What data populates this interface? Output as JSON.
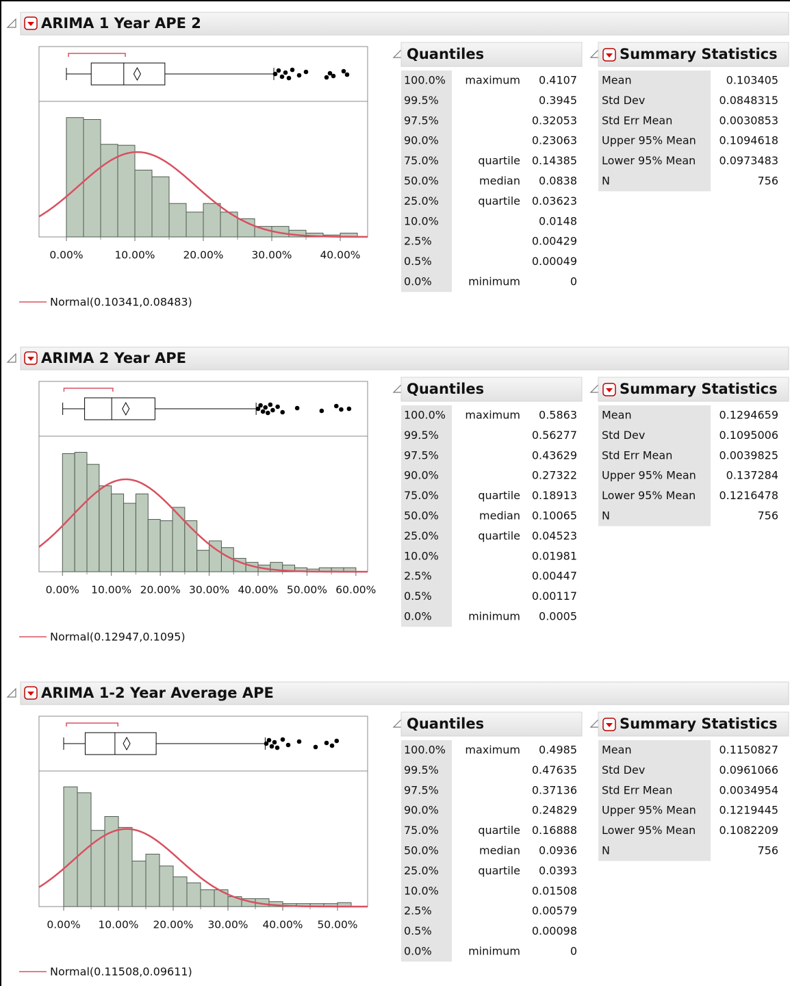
{
  "chart_data": [
    {
      "type": "histogram",
      "title": "ARIMA 1 Year APE 2",
      "color": "#bdcbbd",
      "curve_color": "#d8505f",
      "bins": [
        0,
        0.025,
        0.05,
        0.075,
        0.1,
        0.125,
        0.15,
        0.175,
        0.2,
        0.225,
        0.25,
        0.275,
        0.3,
        0.325,
        0.35,
        0.375,
        0.4,
        0.425
      ],
      "counts": [
        125,
        123,
        97,
        96,
        70,
        63,
        35,
        26,
        35,
        26,
        19,
        11,
        11,
        7,
        4,
        2,
        4
      ],
      "xlim": [
        -0.04,
        0.44
      ],
      "ylim": [
        0,
        142
      ],
      "xticks": [
        {
          "value": 0,
          "label": "0.00%"
        },
        {
          "value": 0.1,
          "label": "10.00%"
        },
        {
          "value": 0.2,
          "label": "20.00%"
        },
        {
          "value": 0.3,
          "label": "30.00%"
        },
        {
          "value": 0.4,
          "label": "40.00%"
        }
      ],
      "upper_whisker": 0.303,
      "shortest_half": [
        0.003,
        0.086
      ],
      "outliers": [
        0.305,
        0.31,
        0.315,
        0.32,
        0.325,
        0.33,
        0.34,
        0.35,
        0.38,
        0.385,
        0.39,
        0.405,
        0.41
      ],
      "fit_label": "Normal(0.10341,0.08483)"
    },
    {
      "type": "histogram",
      "title": "ARIMA 2 Year APE",
      "color": "#bdcbbd",
      "curve_color": "#d8505f",
      "bins": [
        0,
        0.025,
        0.05,
        0.075,
        0.1,
        0.125,
        0.15,
        0.175,
        0.2,
        0.225,
        0.25,
        0.275,
        0.3,
        0.325,
        0.35,
        0.375,
        0.4,
        0.425,
        0.45,
        0.475,
        0.5,
        0.525,
        0.55,
        0.575,
        0.6
      ],
      "counts": [
        88,
        89,
        80,
        64,
        58,
        51,
        58,
        39,
        38,
        48,
        38,
        16,
        23,
        18,
        10,
        7,
        5,
        7,
        5,
        3,
        2,
        3,
        3,
        3
      ],
      "xlim": [
        -0.048,
        0.624
      ],
      "ylim": [
        0,
        101
      ],
      "xticks": [
        {
          "value": 0,
          "label": "0.00%"
        },
        {
          "value": 0.1,
          "label": "10.00%"
        },
        {
          "value": 0.2,
          "label": "20.00%"
        },
        {
          "value": 0.3,
          "label": "30.00%"
        },
        {
          "value": 0.4,
          "label": "40.00%"
        },
        {
          "value": 0.5,
          "label": "50.00%"
        },
        {
          "value": 0.6,
          "label": "60.00%"
        }
      ],
      "upper_whisker": 0.396,
      "shortest_half": [
        0.003,
        0.103
      ],
      "outliers": [
        0.4,
        0.405,
        0.41,
        0.415,
        0.42,
        0.425,
        0.43,
        0.44,
        0.45,
        0.48,
        0.53,
        0.56,
        0.57,
        0.586
      ],
      "fit_label": "Normal(0.12947,0.1095)"
    },
    {
      "type": "histogram",
      "title": "ARIMA 1-2 Year Average APE",
      "color": "#bdcbbd",
      "curve_color": "#d8505f",
      "bins": [
        0,
        0.025,
        0.05,
        0.075,
        0.1,
        0.125,
        0.15,
        0.175,
        0.2,
        0.225,
        0.25,
        0.275,
        0.3,
        0.325,
        0.35,
        0.375,
        0.4,
        0.425,
        0.45,
        0.475,
        0.5,
        0.525
      ],
      "counts": [
        121,
        115,
        77,
        91,
        80,
        46,
        53,
        41,
        30,
        24,
        17,
        17,
        10,
        8,
        8,
        5,
        3,
        3,
        3,
        3,
        4
      ],
      "xlim": [
        -0.045,
        0.555
      ],
      "ylim": [
        0,
        137
      ],
      "xticks": [
        {
          "value": 0,
          "label": "0.00%"
        },
        {
          "value": 0.1,
          "label": "10.00%"
        },
        {
          "value": 0.2,
          "label": "20.00%"
        },
        {
          "value": 0.3,
          "label": "30.00%"
        },
        {
          "value": 0.4,
          "label": "40.00%"
        },
        {
          "value": 0.5,
          "label": "50.00%"
        }
      ],
      "upper_whisker": 0.368,
      "shortest_half": [
        0.005,
        0.099
      ],
      "outliers": [
        0.37,
        0.375,
        0.38,
        0.385,
        0.39,
        0.4,
        0.41,
        0.43,
        0.46,
        0.48,
        0.49,
        0.4985
      ],
      "fit_label": "Normal(0.11508,0.09611)"
    }
  ],
  "reports": [
    {
      "quantiles_title": "Quantiles",
      "summary_title": "Summary Statistics",
      "quantiles": [
        {
          "level": "100.0%",
          "label": "maximum",
          "value": 0.4107
        },
        {
          "level": "99.5%",
          "value": 0.3945
        },
        {
          "level": "97.5%",
          "value": 0.32053
        },
        {
          "level": "90.0%",
          "value": 0.23063
        },
        {
          "level": "75.0%",
          "label": "quartile",
          "value": 0.14385
        },
        {
          "level": "50.0%",
          "label": "median",
          "value": 0.0838
        },
        {
          "level": "25.0%",
          "label": "quartile",
          "value": 0.03623
        },
        {
          "level": "10.0%",
          "value": 0.0148
        },
        {
          "level": "2.5%",
          "value": 0.00429
        },
        {
          "level": "0.5%",
          "value": 0.00049
        },
        {
          "level": "0.0%",
          "label": "minimum",
          "value": 0
        }
      ],
      "summary": [
        {
          "name": "Mean",
          "value": 0.103405
        },
        {
          "name": "Std Dev",
          "value": 0.0848315
        },
        {
          "name": "Std Err Mean",
          "value": 0.0030853
        },
        {
          "name": "Upper 95% Mean",
          "value": 0.1094618
        },
        {
          "name": "Lower 95% Mean",
          "value": 0.0973483
        },
        {
          "name": "N",
          "value": 756
        }
      ]
    },
    {
      "quantiles_title": "Quantiles",
      "summary_title": "Summary Statistics",
      "quantiles": [
        {
          "level": "100.0%",
          "label": "maximum",
          "value": 0.5863
        },
        {
          "level": "99.5%",
          "value": 0.56277
        },
        {
          "level": "97.5%",
          "value": 0.43629
        },
        {
          "level": "90.0%",
          "value": 0.27322
        },
        {
          "level": "75.0%",
          "label": "quartile",
          "value": 0.18913
        },
        {
          "level": "50.0%",
          "label": "median",
          "value": 0.10065
        },
        {
          "level": "25.0%",
          "label": "quartile",
          "value": 0.04523
        },
        {
          "level": "10.0%",
          "value": 0.01981
        },
        {
          "level": "2.5%",
          "value": 0.00447
        },
        {
          "level": "0.5%",
          "value": 0.00117
        },
        {
          "level": "0.0%",
          "label": "minimum",
          "value": 0.0005
        }
      ],
      "summary": [
        {
          "name": "Mean",
          "value": 0.1294659
        },
        {
          "name": "Std Dev",
          "value": 0.1095006
        },
        {
          "name": "Std Err Mean",
          "value": 0.0039825
        },
        {
          "name": "Upper 95% Mean",
          "value": 0.137284
        },
        {
          "name": "Lower 95% Mean",
          "value": 0.1216478
        },
        {
          "name": "N",
          "value": 756
        }
      ]
    },
    {
      "quantiles_title": "Quantiles",
      "summary_title": "Summary Statistics",
      "quantiles": [
        {
          "level": "100.0%",
          "label": "maximum",
          "value": 0.4985
        },
        {
          "level": "99.5%",
          "value": 0.47635
        },
        {
          "level": "97.5%",
          "value": 0.37136
        },
        {
          "level": "90.0%",
          "value": 0.24829
        },
        {
          "level": "75.0%",
          "label": "quartile",
          "value": 0.16888
        },
        {
          "level": "50.0%",
          "label": "median",
          "value": 0.0936
        },
        {
          "level": "25.0%",
          "label": "quartile",
          "value": 0.0393
        },
        {
          "level": "10.0%",
          "value": 0.01508
        },
        {
          "level": "2.5%",
          "value": 0.00579
        },
        {
          "level": "0.5%",
          "value": 0.00098
        },
        {
          "level": "0.0%",
          "label": "minimum",
          "value": 0
        }
      ],
      "summary": [
        {
          "name": "Mean",
          "value": 0.1150827
        },
        {
          "name": "Std Dev",
          "value": 0.0961066
        },
        {
          "name": "Std Err Mean",
          "value": 0.0034954
        },
        {
          "name": "Upper 95% Mean",
          "value": 0.1219445
        },
        {
          "name": "Lower 95% Mean",
          "value": 0.1082209
        },
        {
          "name": "N",
          "value": 756
        }
      ]
    }
  ]
}
